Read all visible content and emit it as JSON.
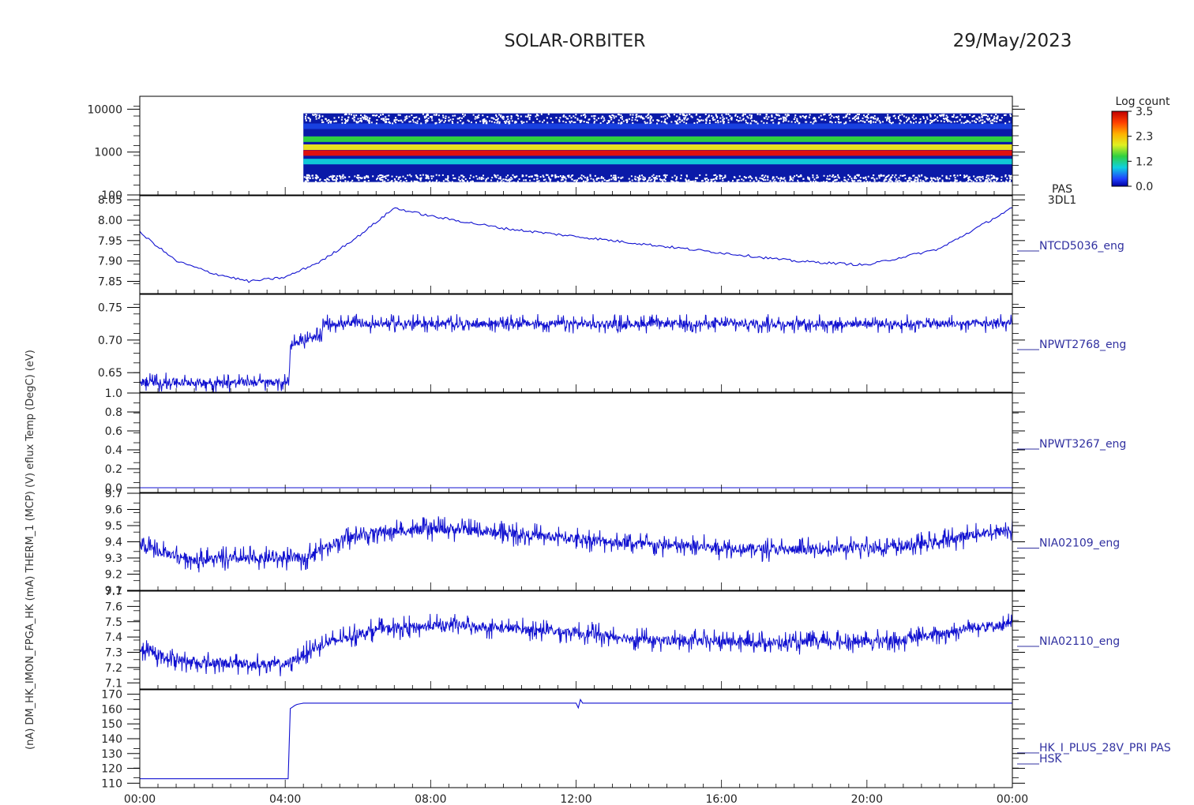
{
  "header": {
    "title": "SOLAR-ORBITER",
    "date": "29/May/2023"
  },
  "colorbar": {
    "label": "Log count",
    "ticks": [
      "3.5",
      "2.3",
      "1.2",
      "0.0"
    ]
  },
  "x_axis": {
    "tick_labels": [
      "00:00",
      "04:00",
      "08:00",
      "12:00",
      "16:00",
      "20:00",
      "00:00"
    ]
  },
  "left_label_overlap": "(nA) DM_HK_IMON_FPGA_HK (mA) THERM_1 (MCP) (V) eflux Temp (DegC) (eV)",
  "colors": {
    "trace": "#1010d0",
    "axes": "#000000",
    "label": "#3030a0"
  },
  "chart_data": [
    {
      "type": "heatmap",
      "panel_label": [
        "PAS",
        "3DL1"
      ],
      "ylabel": "(eV)",
      "y_scale": "log",
      "ylim": [
        100,
        20000
      ],
      "y_ticks": [
        "10000",
        "1000",
        "100"
      ],
      "data_start_hour": 4.5,
      "bands_eV": [
        {
          "energy": 600,
          "level": 1.2
        },
        {
          "energy": 950,
          "level": 3.3
        },
        {
          "energy": 1300,
          "level": 2.0
        },
        {
          "energy": 2000,
          "level": 1.8
        },
        {
          "energy": 4000,
          "level": 0.4
        }
      ]
    },
    {
      "type": "line",
      "series_label": "NTCD5036_eng",
      "ylim": [
        7.82,
        8.06
      ],
      "y_ticks": [
        "8.05",
        "8.00",
        "7.95",
        "7.90",
        "7.85"
      ],
      "x_hours": [
        0,
        1,
        2,
        3,
        4,
        5,
        6,
        7,
        8,
        10,
        12,
        14,
        16,
        18,
        20,
        22,
        24
      ],
      "values": [
        7.97,
        7.9,
        7.87,
        7.85,
        7.86,
        7.9,
        7.96,
        8.03,
        8.01,
        7.98,
        7.96,
        7.94,
        7.92,
        7.9,
        7.89,
        7.93,
        8.03
      ]
    },
    {
      "type": "line",
      "series_label": "NPWT2768_eng",
      "ylim": [
        0.62,
        0.77
      ],
      "y_ticks": [
        "0.75",
        "0.70",
        "0.65"
      ],
      "x_hours": [
        0,
        4.1,
        4.15,
        5.0,
        5.05,
        24
      ],
      "values": [
        0.635,
        0.635,
        0.695,
        0.705,
        0.725,
        0.725
      ],
      "noise_amplitude": 0.015
    },
    {
      "type": "line",
      "series_label": "NPWT3267_eng",
      "ylim": [
        -0.05,
        1.0
      ],
      "y_ticks": [
        "1.0",
        "0.8",
        "0.6",
        "0.4",
        "0.2",
        "0.0"
      ],
      "x_hours": [
        0,
        24
      ],
      "values": [
        0.0,
        0.0
      ]
    },
    {
      "type": "line",
      "series_label": "NIA02109_eng",
      "ylim": [
        9.1,
        9.7
      ],
      "y_ticks": [
        "9.7",
        "9.6",
        "9.5",
        "9.4",
        "9.3",
        "9.2",
        "9.1"
      ],
      "x_hours": [
        0,
        0.5,
        1.5,
        4.5,
        5.5,
        6.5,
        8.5,
        12,
        14,
        18,
        21,
        22,
        23,
        24
      ],
      "values": [
        9.38,
        9.34,
        9.29,
        9.3,
        9.41,
        9.46,
        9.48,
        9.42,
        9.38,
        9.35,
        9.37,
        9.4,
        9.45,
        9.47
      ],
      "noise_amplitude": 0.08
    },
    {
      "type": "line",
      "series_label": "NIA02110_eng",
      "ylim": [
        7.06,
        7.7
      ],
      "y_ticks": [
        "7.7",
        "7.6",
        "7.5",
        "7.4",
        "7.3",
        "7.2",
        "7.1"
      ],
      "x_hours": [
        0,
        0.5,
        1.5,
        4.0,
        5.0,
        6.5,
        8.5,
        12,
        14,
        18,
        21,
        22,
        23,
        24
      ],
      "values": [
        7.32,
        7.28,
        7.23,
        7.22,
        7.35,
        7.45,
        7.48,
        7.43,
        7.38,
        7.36,
        7.38,
        7.42,
        7.47,
        7.48
      ],
      "noise_amplitude": 0.08
    },
    {
      "type": "line",
      "series_label": [
        "HK_I_PLUS_28V_PRI PAS",
        "HSK"
      ],
      "ylim": [
        107,
        173
      ],
      "y_ticks": [
        "170",
        "160",
        "150",
        "140",
        "130",
        "120",
        "110"
      ],
      "x_hours": [
        0,
        4.1,
        4.12,
        4.3,
        4.5,
        12.0,
        12.05,
        12.1,
        12.15,
        24
      ],
      "values": [
        113,
        113,
        160,
        163,
        164,
        164,
        159,
        168,
        164,
        164
      ]
    }
  ]
}
